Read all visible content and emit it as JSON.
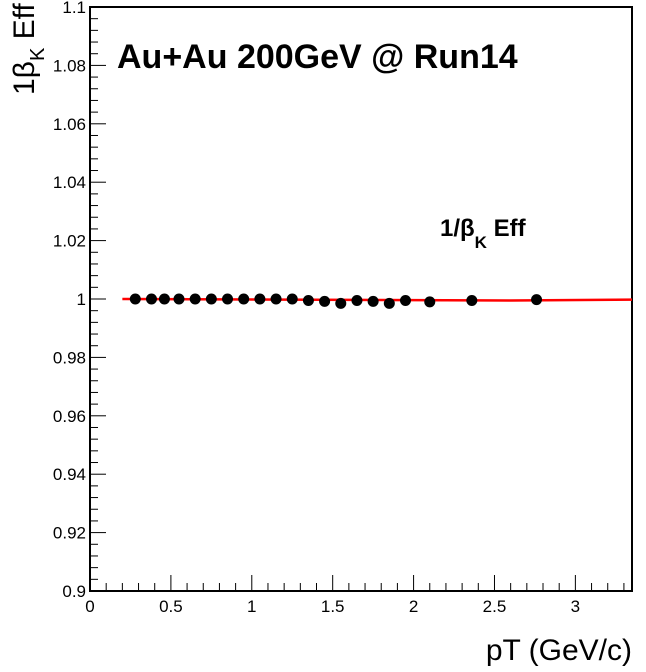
{
  "chart_data": {
    "type": "scatter",
    "title": "Au+Au 200GeV @ Run14",
    "xlabel": "pT (GeV/c)",
    "ylabel": {
      "prefix": "1β",
      "sub": "K",
      "suffix": " Eff"
    },
    "xlim": [
      0,
      3.35
    ],
    "ylim": [
      0.9,
      1.1
    ],
    "x_ticks": [
      "0",
      "0.5",
      "1",
      "1.5",
      "2",
      "2.5",
      "3"
    ],
    "x_tick_values": [
      0,
      0.5,
      1,
      1.5,
      2,
      2.5,
      3
    ],
    "y_ticks": [
      "0.9",
      "0.92",
      "0.94",
      "0.96",
      "0.98",
      "1",
      "1.02",
      "1.04",
      "1.06",
      "1.08",
      "1.1"
    ],
    "y_tick_values": [
      0.9,
      0.92,
      0.94,
      0.96,
      0.98,
      1.0,
      1.02,
      1.04,
      1.06,
      1.08,
      1.1
    ],
    "legend": {
      "prefix": "1/β",
      "sub": "K",
      "suffix": " Eff",
      "placement": "upper-right"
    },
    "series": [
      {
        "name": "1/βK Eff",
        "marker": "circle",
        "color": "#000000",
        "x": [
          0.28,
          0.38,
          0.46,
          0.55,
          0.65,
          0.75,
          0.85,
          0.95,
          1.05,
          1.15,
          1.25,
          1.35,
          1.45,
          1.55,
          1.65,
          1.75,
          1.85,
          1.95,
          2.1,
          2.36,
          2.76
        ],
        "y": [
          1.0,
          1.0,
          1.0,
          1.0,
          1.0,
          1.0,
          1.0,
          1.0,
          1.0,
          1.0,
          1.0,
          0.9995,
          0.9992,
          0.9985,
          0.9995,
          0.9992,
          0.9985,
          0.9995,
          0.999,
          0.9995,
          0.9998
        ]
      },
      {
        "name": "fit",
        "type": "line",
        "color": "#ff0000",
        "x": [
          0.2,
          2.6,
          3.35
        ],
        "y": [
          1.0,
          0.9995,
          0.9998
        ]
      }
    ],
    "grid": false
  }
}
